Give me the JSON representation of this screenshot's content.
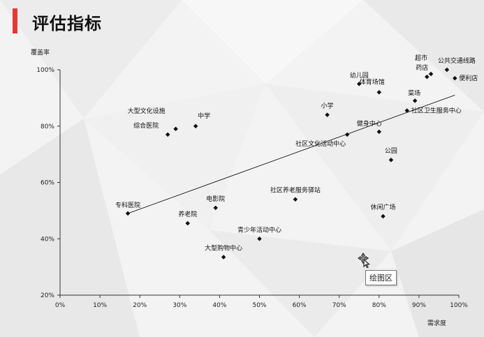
{
  "page": {
    "title": "评估指标",
    "accent": "#e53935"
  },
  "tooltip": {
    "text": "绘图区"
  },
  "chart_data": {
    "type": "scatter",
    "xlabel": "需求度",
    "ylabel": "覆盖率",
    "xlim": [
      0,
      1
    ],
    "ylim": [
      0.2,
      1
    ],
    "xticks": [
      "0%",
      "10%",
      "20%",
      "30%",
      "40%",
      "50%",
      "60%",
      "70%",
      "80%",
      "90%",
      "100%"
    ],
    "yticks": [
      "20%",
      "40%",
      "60%",
      "80%",
      "100%"
    ],
    "trendline": {
      "from": [
        0.17,
        0.49
      ],
      "to": [
        0.99,
        0.91
      ]
    },
    "points": [
      {
        "label": "专科医院",
        "x": 0.17,
        "y": 0.49
      },
      {
        "label": "综合医院",
        "x": 0.27,
        "y": 0.77
      },
      {
        "label": "大型文化设施",
        "x": 0.29,
        "y": 0.79
      },
      {
        "label": "中学",
        "x": 0.34,
        "y": 0.8
      },
      {
        "label": "养老院",
        "x": 0.32,
        "y": 0.455
      },
      {
        "label": "电影院",
        "x": 0.39,
        "y": 0.51
      },
      {
        "label": "大型购物中心",
        "x": 0.41,
        "y": 0.335
      },
      {
        "label": "青少年活动中心",
        "x": 0.5,
        "y": 0.4
      },
      {
        "label": "社区养老服务驿站",
        "x": 0.59,
        "y": 0.54
      },
      {
        "label": "小学",
        "x": 0.67,
        "y": 0.84
      },
      {
        "label": "社区文化活动中心",
        "x": 0.72,
        "y": 0.77
      },
      {
        "label": "幼儿园",
        "x": 0.75,
        "y": 0.95
      },
      {
        "label": "体育场馆",
        "x": 0.8,
        "y": 0.92
      },
      {
        "label": "健身中心",
        "x": 0.8,
        "y": 0.78
      },
      {
        "label": "公园",
        "x": 0.83,
        "y": 0.68
      },
      {
        "label": "休闲广场",
        "x": 0.81,
        "y": 0.48
      },
      {
        "label": "菜场",
        "x": 0.89,
        "y": 0.89
      },
      {
        "label": "社区卫生服务中心",
        "x": 0.87,
        "y": 0.855
      },
      {
        "label": "药店",
        "x": 0.92,
        "y": 0.975
      },
      {
        "label": "超市",
        "x": 0.93,
        "y": 0.985
      },
      {
        "label": "公共交通线路",
        "x": 0.97,
        "y": 1.0
      },
      {
        "label": "便利店",
        "x": 0.99,
        "y": 0.97
      }
    ]
  }
}
